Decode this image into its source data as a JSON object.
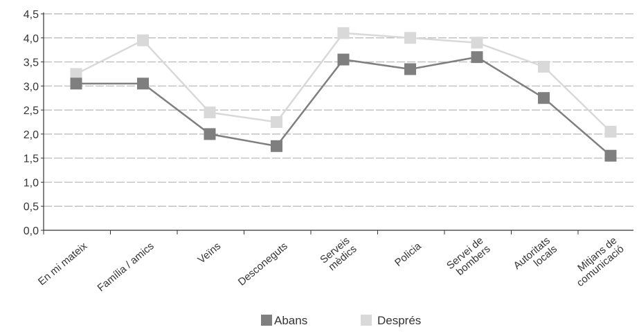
{
  "chart_data": {
    "type": "line",
    "categories": [
      [
        "En mi mateix"
      ],
      [
        "Família / amics"
      ],
      [
        "Veïns"
      ],
      [
        "Desconeguts"
      ],
      [
        "Serveis",
        "mèdics"
      ],
      [
        "Policia"
      ],
      [
        "Servei de",
        "bombers"
      ],
      [
        "Autoritats",
        "locals"
      ],
      [
        "Mitjans de",
        "comunicació"
      ]
    ],
    "series": [
      {
        "name": "Abans",
        "color": "#7f7f7f",
        "values": [
          3.05,
          3.05,
          2.0,
          1.75,
          3.55,
          3.35,
          3.6,
          2.75,
          1.55
        ]
      },
      {
        "name": "Després",
        "color": "#d9d9d9",
        "values": [
          3.25,
          3.95,
          2.45,
          2.25,
          4.1,
          4.0,
          3.9,
          3.4,
          2.05
        ]
      }
    ],
    "ylim": [
      0,
      4.5
    ],
    "yticks": [
      "0,0",
      "0,5",
      "1,0",
      "1,5",
      "2,0",
      "2,5",
      "3,0",
      "3,5",
      "4,0",
      "4,5"
    ],
    "ytick_values": [
      0,
      0.5,
      1.0,
      1.5,
      2.0,
      2.5,
      3.0,
      3.5,
      4.0,
      4.5
    ],
    "grid": true,
    "grid_style": "dashed",
    "legend_position": "bottom-center"
  }
}
